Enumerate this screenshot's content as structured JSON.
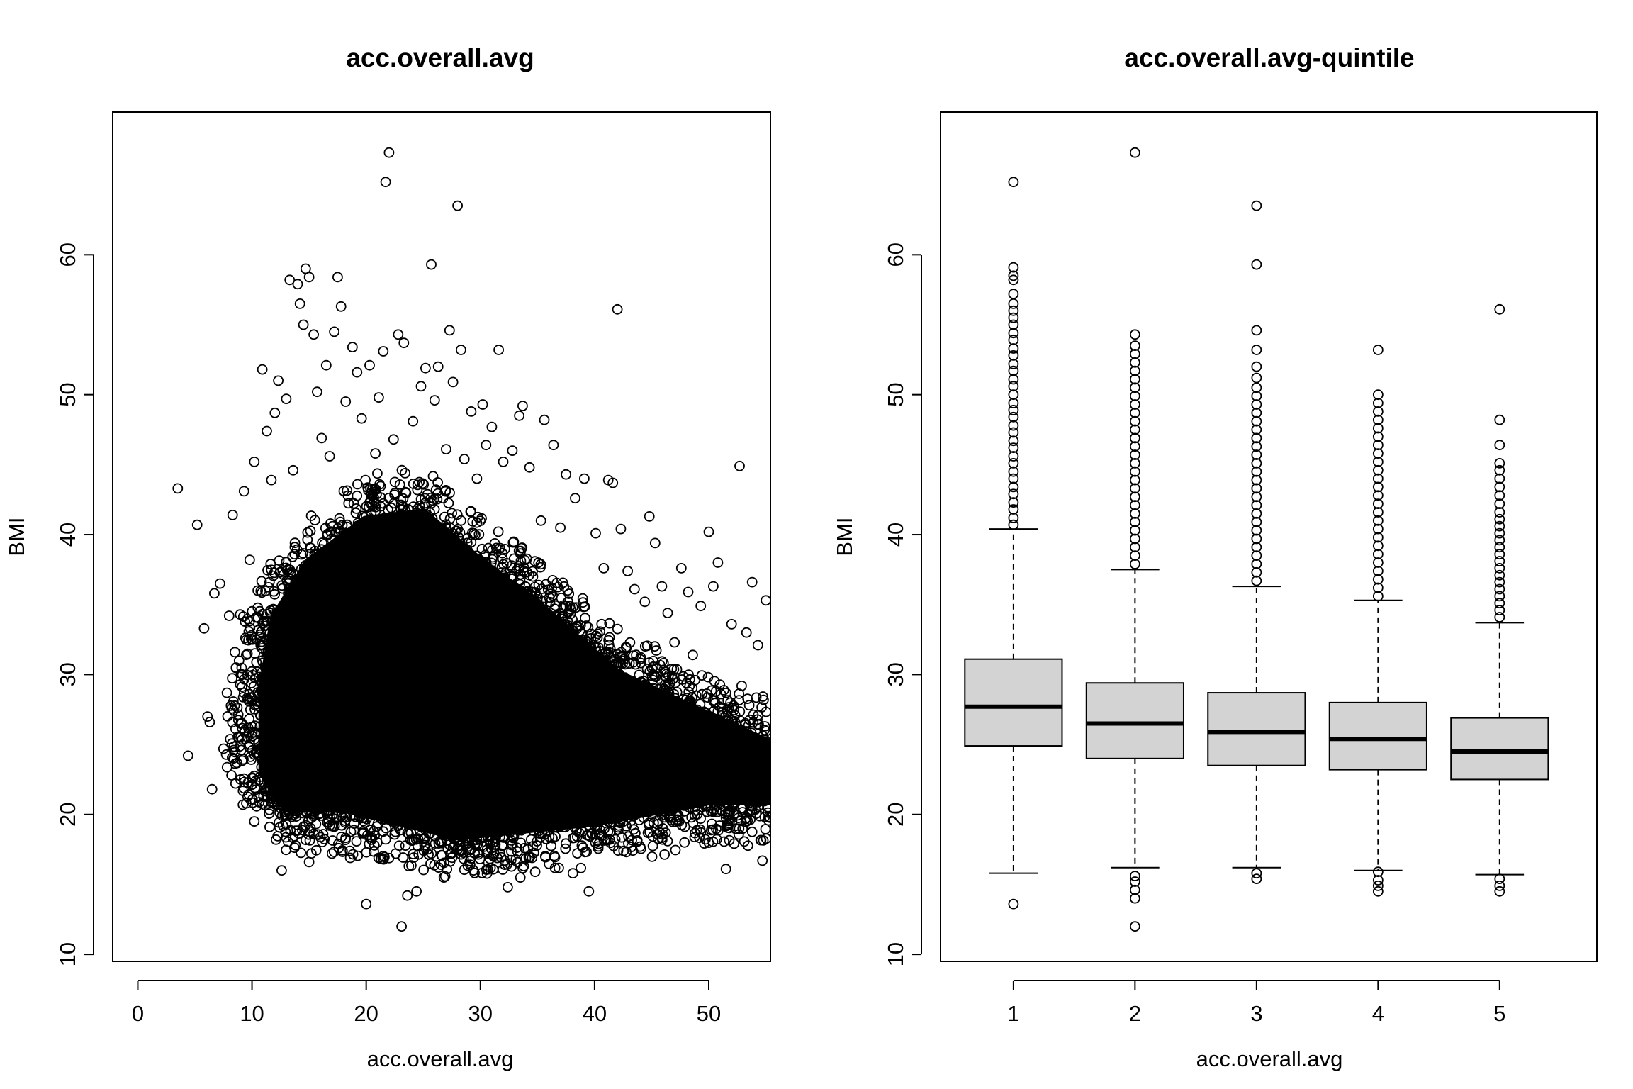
{
  "chart_data": [
    {
      "type": "scatter",
      "title": "acc.overall.avg",
      "xlabel": "acc.overall.avg",
      "ylabel": "BMI",
      "xlim": [
        -2.2,
        55.4
      ],
      "ylim": [
        9.5,
        70.2
      ],
      "xticks": [
        0,
        10,
        20,
        30,
        40,
        50
      ],
      "yticks": [
        10,
        20,
        30,
        40,
        50,
        60
      ],
      "grid": false,
      "legend": "none",
      "point_color": "#000000",
      "dense_core": [
        [
          18,
          20.5
        ],
        [
          28,
          18.5
        ],
        [
          40,
          19.5
        ],
        [
          50,
          21
        ],
        [
          55.4,
          21
        ],
        [
          55.4,
          25
        ],
        [
          50,
          27
        ],
        [
          42,
          30
        ],
        [
          35,
          35
        ],
        [
          30,
          38
        ],
        [
          25,
          41.5
        ],
        [
          20,
          41
        ],
        [
          15,
          38
        ],
        [
          12,
          34
        ],
        [
          11,
          29
        ],
        [
          11,
          23
        ],
        [
          13,
          20.5
        ]
      ],
      "outliers": [
        [
          3.5,
          43.3
        ],
        [
          4.4,
          24.2
        ],
        [
          5.2,
          40.7
        ],
        [
          5.8,
          33.3
        ],
        [
          6.1,
          27.0
        ],
        [
          6.3,
          26.6
        ],
        [
          6.5,
          21.8
        ],
        [
          6.7,
          35.8
        ],
        [
          7.2,
          36.5
        ],
        [
          7.5,
          24.7
        ],
        [
          7.8,
          28.7
        ],
        [
          8.0,
          34.2
        ],
        [
          8.3,
          41.4
        ],
        [
          8.6,
          30.5
        ],
        [
          9.0,
          22.5
        ],
        [
          9.3,
          43.1
        ],
        [
          9.5,
          20.8
        ],
        [
          9.8,
          38.2
        ],
        [
          10.2,
          45.2
        ],
        [
          10.5,
          36.0
        ],
        [
          10.9,
          51.8
        ],
        [
          11.3,
          47.4
        ],
        [
          11.7,
          43.9
        ],
        [
          12.0,
          48.7
        ],
        [
          12.3,
          51.0
        ],
        [
          12.6,
          16.0
        ],
        [
          13.0,
          49.7
        ],
        [
          13.3,
          58.2
        ],
        [
          13.6,
          44.6
        ],
        [
          14.0,
          57.9
        ],
        [
          14.2,
          56.5
        ],
        [
          14.5,
          55.0
        ],
        [
          14.7,
          59.0
        ],
        [
          15.0,
          58.4
        ],
        [
          15.4,
          54.3
        ],
        [
          15.7,
          50.2
        ],
        [
          16.1,
          46.9
        ],
        [
          16.5,
          52.1
        ],
        [
          16.8,
          45.6
        ],
        [
          17.2,
          54.5
        ],
        [
          17.5,
          58.4
        ],
        [
          17.8,
          56.3
        ],
        [
          18.2,
          49.5
        ],
        [
          18.6,
          16.9
        ],
        [
          18.8,
          53.4
        ],
        [
          19.2,
          51.6
        ],
        [
          19.6,
          48.3
        ],
        [
          20.0,
          13.6
        ],
        [
          20.3,
          52.1
        ],
        [
          20.8,
          45.8
        ],
        [
          21.1,
          49.8
        ],
        [
          21.5,
          53.1
        ],
        [
          21.7,
          65.2
        ],
        [
          22.0,
          67.3
        ],
        [
          22.4,
          46.8
        ],
        [
          22.8,
          54.3
        ],
        [
          23.1,
          12.0
        ],
        [
          23.3,
          53.7
        ],
        [
          23.6,
          14.2
        ],
        [
          24.1,
          48.1
        ],
        [
          24.4,
          14.5
        ],
        [
          24.8,
          50.6
        ],
        [
          25.2,
          51.9
        ],
        [
          25.7,
          59.3
        ],
        [
          26.0,
          49.6
        ],
        [
          26.3,
          52.0
        ],
        [
          27.0,
          46.1
        ],
        [
          27.3,
          54.6
        ],
        [
          27.6,
          50.9
        ],
        [
          28.0,
          63.5
        ],
        [
          28.3,
          53.2
        ],
        [
          28.6,
          45.4
        ],
        [
          29.2,
          48.8
        ],
        [
          29.7,
          44.0
        ],
        [
          30.2,
          49.3
        ],
        [
          30.5,
          46.4
        ],
        [
          31.0,
          47.7
        ],
        [
          31.6,
          53.2
        ],
        [
          32.0,
          45.2
        ],
        [
          32.4,
          14.8
        ],
        [
          32.8,
          46.0
        ],
        [
          33.4,
          48.5
        ],
        [
          33.7,
          49.2
        ],
        [
          34.3,
          44.8
        ],
        [
          34.8,
          15.9
        ],
        [
          35.3,
          41.0
        ],
        [
          35.6,
          48.2
        ],
        [
          36.4,
          46.4
        ],
        [
          37.0,
          40.5
        ],
        [
          37.5,
          44.3
        ],
        [
          38.3,
          42.6
        ],
        [
          39.1,
          44.0
        ],
        [
          39.5,
          14.5
        ],
        [
          40.1,
          40.1
        ],
        [
          40.8,
          37.6
        ],
        [
          41.2,
          43.9
        ],
        [
          41.6,
          43.7
        ],
        [
          42.0,
          56.1
        ],
        [
          42.3,
          40.4
        ],
        [
          42.9,
          37.4
        ],
        [
          43.5,
          36.1
        ],
        [
          44.4,
          35.2
        ],
        [
          44.8,
          41.3
        ],
        [
          45.3,
          39.4
        ],
        [
          45.9,
          36.3
        ],
        [
          46.4,
          34.4
        ],
        [
          47.0,
          32.3
        ],
        [
          47.6,
          37.6
        ],
        [
          48.2,
          35.9
        ],
        [
          48.6,
          31.4
        ],
        [
          49.3,
          34.9
        ],
        [
          50.0,
          40.2
        ],
        [
          50.4,
          36.3
        ],
        [
          50.8,
          38.0
        ],
        [
          51.5,
          16.1
        ],
        [
          52.0,
          33.6
        ],
        [
          52.7,
          44.9
        ],
        [
          53.3,
          33.0
        ],
        [
          53.8,
          36.6
        ],
        [
          54.3,
          32.1
        ],
        [
          54.7,
          16.7
        ],
        [
          55.0,
          35.3
        ],
        [
          44.0,
          17.7
        ],
        [
          38.1,
          15.8
        ],
        [
          33.5,
          15.5
        ],
        [
          29.4,
          16.0
        ],
        [
          26.8,
          15.5
        ],
        [
          17.0,
          17.2
        ],
        [
          15.0,
          16.6
        ],
        [
          13.8,
          17.8
        ],
        [
          12.1,
          18.2
        ],
        [
          10.2,
          19.5
        ],
        [
          9.2,
          20.7
        ],
        [
          8.2,
          22.8
        ],
        [
          9.8,
          25.0
        ],
        [
          8.5,
          31.6
        ]
      ]
    },
    {
      "type": "box",
      "title": "acc.overall.avg-quintile",
      "xlabel": "acc.overall.avg",
      "ylabel": "BMI",
      "xlim": [
        0.4,
        5.8
      ],
      "ylim": [
        9.5,
        70.2
      ],
      "categories": [
        "1",
        "2",
        "3",
        "4",
        "5"
      ],
      "yticks": [
        10,
        20,
        30,
        40,
        50,
        60
      ],
      "box_fill": "#d3d3d3",
      "grid": false,
      "legend": "none",
      "boxes": [
        {
          "label": "1",
          "lower_whisker": 15.8,
          "q1": 24.9,
          "median": 27.7,
          "q3": 31.1,
          "upper_whisker": 40.4,
          "outliers": [
            13.6,
            40.7,
            41.2,
            41.8,
            42.3,
            42.9,
            43.4,
            44.0,
            44.5,
            45.1,
            45.6,
            46.2,
            46.7,
            47.3,
            47.8,
            48.4,
            48.9,
            49.4,
            50.0,
            50.6,
            51.1,
            51.7,
            52.2,
            52.8,
            53.3,
            53.9,
            54.4,
            55.0,
            55.5,
            56.0,
            56.5,
            57.2,
            58.2,
            58.5,
            59.1,
            65.2
          ]
        },
        {
          "label": "2",
          "lower_whisker": 16.2,
          "q1": 24.0,
          "median": 26.5,
          "q3": 29.4,
          "upper_whisker": 37.5,
          "outliers": [
            12.0,
            14.0,
            14.6,
            15.2,
            15.6,
            37.9,
            38.5,
            39.1,
            39.7,
            40.3,
            40.9,
            41.5,
            42.1,
            42.7,
            43.3,
            43.9,
            44.5,
            45.1,
            45.7,
            46.3,
            46.9,
            47.5,
            48.1,
            48.7,
            49.3,
            49.9,
            50.5,
            51.1,
            51.7,
            52.3,
            52.9,
            53.5,
            54.3,
            67.3
          ]
        },
        {
          "label": "3",
          "lower_whisker": 16.2,
          "q1": 23.5,
          "median": 25.9,
          "q3": 28.7,
          "upper_whisker": 36.3,
          "outliers": [
            15.4,
            15.8,
            36.7,
            37.3,
            37.9,
            38.5,
            39.1,
            39.7,
            40.3,
            40.9,
            41.5,
            42.1,
            42.7,
            43.3,
            43.9,
            44.5,
            45.1,
            45.7,
            46.3,
            46.9,
            47.5,
            48.1,
            48.7,
            49.3,
            49.9,
            50.5,
            51.2,
            52.0,
            53.2,
            54.6,
            59.3,
            63.5
          ]
        },
        {
          "label": "4",
          "lower_whisker": 16.0,
          "q1": 23.2,
          "median": 25.4,
          "q3": 28.0,
          "upper_whisker": 35.3,
          "outliers": [
            14.5,
            14.9,
            15.3,
            15.9,
            35.6,
            36.2,
            36.8,
            37.4,
            38.0,
            38.6,
            39.2,
            39.8,
            40.4,
            41.0,
            41.6,
            42.2,
            42.8,
            43.4,
            44.0,
            44.6,
            45.2,
            45.8,
            46.4,
            47.0,
            47.6,
            48.2,
            48.8,
            49.4,
            50.0,
            53.2
          ]
        },
        {
          "label": "5",
          "lower_whisker": 15.7,
          "q1": 22.5,
          "median": 24.5,
          "q3": 26.9,
          "upper_whisker": 33.7,
          "outliers": [
            14.5,
            14.9,
            15.4,
            34.1,
            34.6,
            35.1,
            35.6,
            36.1,
            36.6,
            37.1,
            37.6,
            38.1,
            38.6,
            39.1,
            39.6,
            40.1,
            40.6,
            41.1,
            41.6,
            42.2,
            42.8,
            43.4,
            44.0,
            44.6,
            45.1,
            46.4,
            48.2,
            56.1
          ]
        }
      ]
    }
  ]
}
